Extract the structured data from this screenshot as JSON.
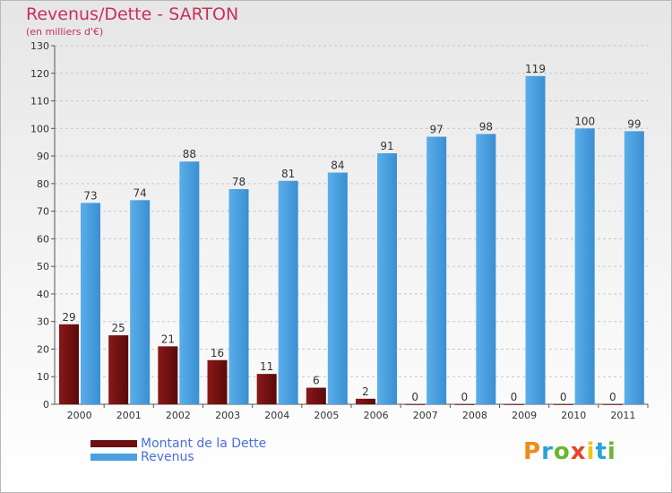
{
  "title": "Revenus/Dette - SARTON",
  "subtitle": "(en milliers d'€)",
  "logo": {
    "text": "Proxiti",
    "colors": [
      "#f08a1c",
      "#2aa3d8",
      "#6cb530",
      "#e8432c",
      "#f0c419",
      "#2aa3d8",
      "#6cb530"
    ]
  },
  "colors": {
    "dette": "#6d0f0f",
    "revenus": "#4aa0e0"
  },
  "chart_data": {
    "type": "bar",
    "categories": [
      "2000",
      "2001",
      "2002",
      "2003",
      "2004",
      "2005",
      "2006",
      "2007",
      "2008",
      "2009",
      "2010",
      "2011"
    ],
    "series": [
      {
        "name": "Montant de la Dette",
        "values": [
          29,
          25,
          21,
          16,
          11,
          6,
          2,
          0,
          0,
          0,
          0,
          0
        ]
      },
      {
        "name": "Revenus",
        "values": [
          73,
          74,
          88,
          78,
          81,
          84,
          91,
          97,
          98,
          119,
          100,
          99
        ]
      }
    ],
    "ylim": [
      0,
      130
    ],
    "yticks": [
      0,
      10,
      20,
      30,
      40,
      50,
      60,
      70,
      80,
      90,
      100,
      110,
      120,
      130
    ],
    "grid": true,
    "legend": "bottom-left"
  }
}
